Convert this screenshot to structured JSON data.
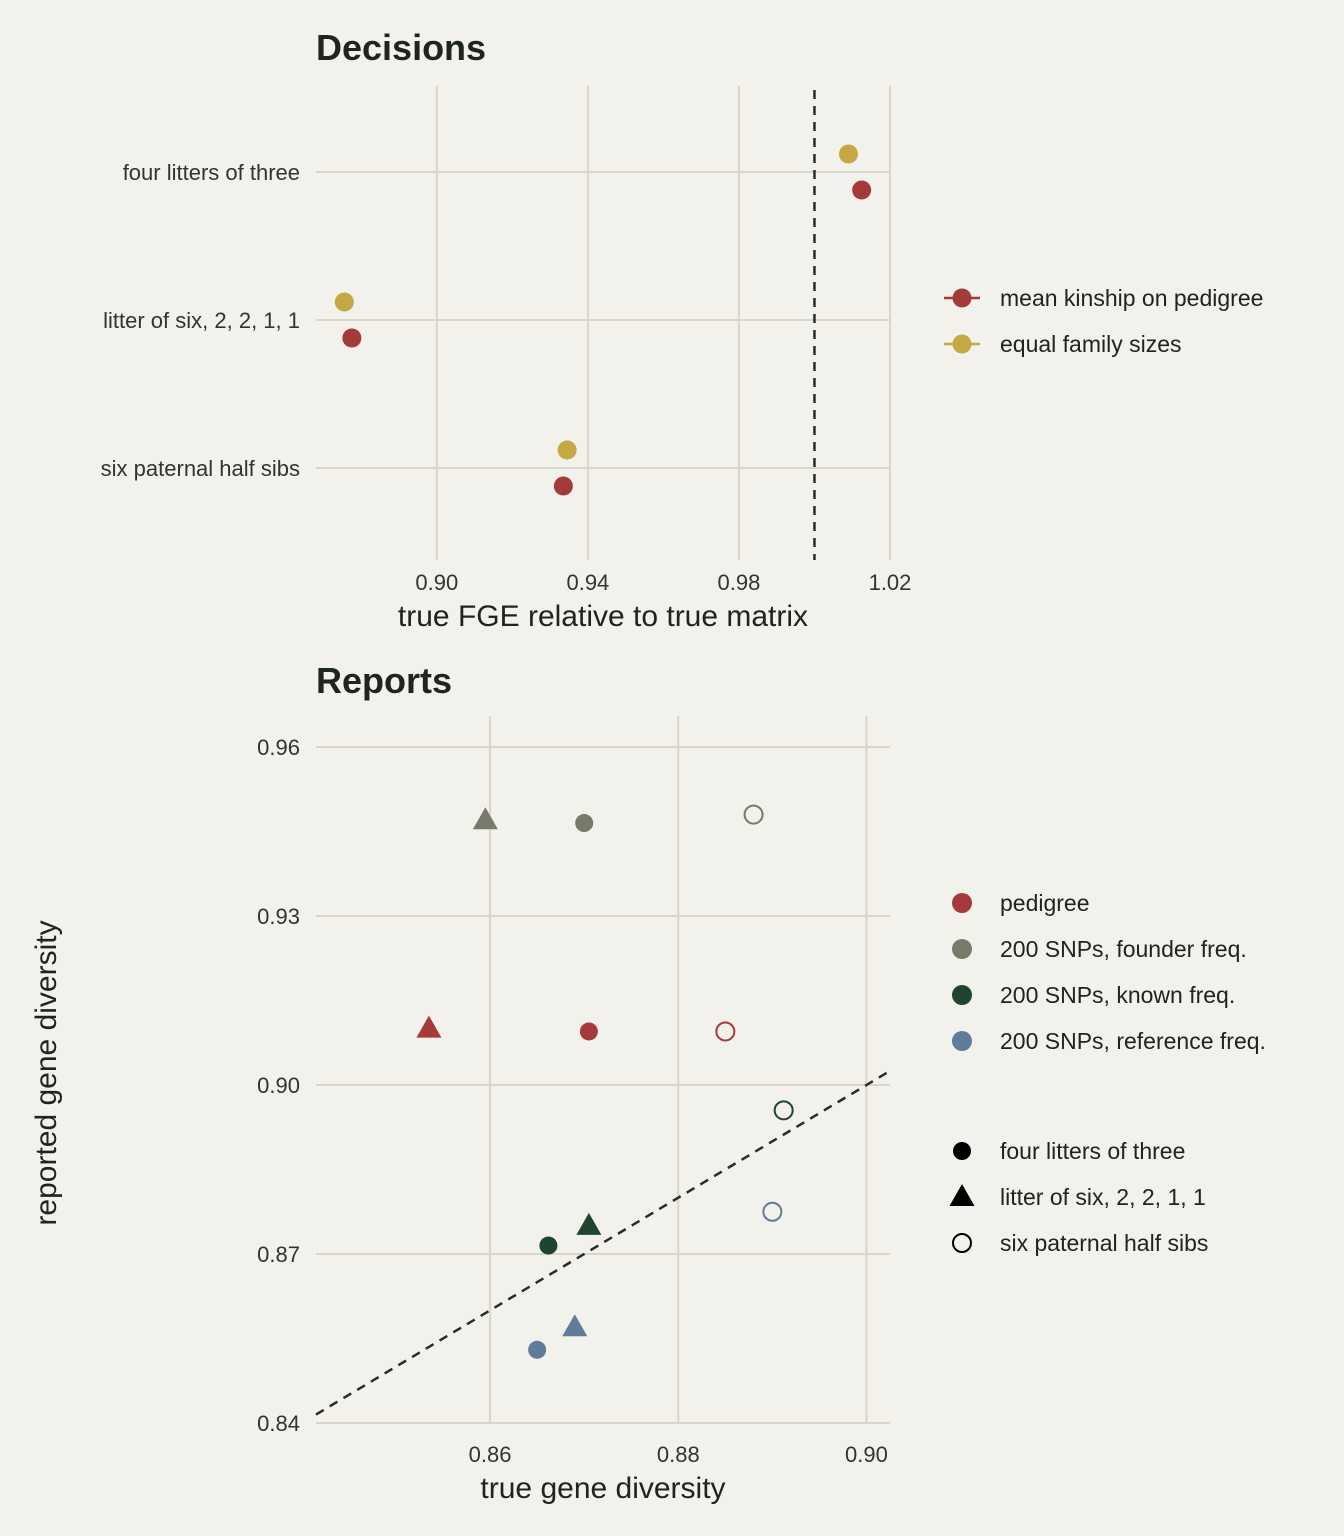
{
  "chart_data": [
    {
      "type": "scatter",
      "title": "Decisions",
      "xlabel": "true FGE relative to true matrix",
      "ylabel": "",
      "xlim": [
        0.868,
        1.02
      ],
      "xticks": [
        "0.90",
        "0.94",
        "0.98",
        "1.02"
      ],
      "xtick_values": [
        0.9,
        0.94,
        0.98,
        1.02
      ],
      "categories": [
        "four litters of three",
        "litter of six, 2, 2, 1, 1",
        "six paternal half sibs"
      ],
      "reference_line": {
        "x": 1.0,
        "style": "dashed"
      },
      "series": [
        {
          "name": "mean kinship on pedigree",
          "color": "#a53a3a",
          "values": [
            1.0125,
            0.8775,
            0.9335
          ]
        },
        {
          "name": "equal family sizes",
          "color": "#c4a843",
          "values": [
            1.009,
            0.8755,
            0.9345
          ]
        }
      ],
      "legend": "right"
    },
    {
      "type": "scatter",
      "title": "Reports",
      "xlabel": "true gene diversity",
      "ylabel": "reported gene diversity",
      "xlim": [
        0.8415,
        0.9025
      ],
      "ylim": [
        0.84,
        0.9655
      ],
      "xticks": [
        "0.86",
        "0.88",
        "0.90"
      ],
      "xtick_values": [
        0.86,
        0.88,
        0.9
      ],
      "yticks": [
        "0.84",
        "0.87",
        "0.90",
        "0.93",
        "0.96"
      ],
      "ytick_values": [
        0.84,
        0.87,
        0.9,
        0.93,
        0.96
      ],
      "reference_line": {
        "type": "identity",
        "style": "dashed"
      },
      "color_legend": [
        {
          "name": "pedigree",
          "color": "#a53a3a"
        },
        {
          "name": "200 SNPs, founder freq.",
          "color": "#7a7a6a"
        },
        {
          "name": "200 SNPs, known freq.",
          "color": "#1f4430"
        },
        {
          "name": "200 SNPs, reference freq.",
          "color": "#5f7d99"
        }
      ],
      "shape_legend": [
        {
          "name": "four litters of three",
          "shape": "circle"
        },
        {
          "name": "litter of six, 2, 2, 1, 1",
          "shape": "triangle"
        },
        {
          "name": "six paternal half sibs",
          "shape": "open-circle"
        }
      ],
      "points": [
        {
          "method": "pedigree",
          "design": "four litters of three",
          "x": 0.8705,
          "y": 0.9095
        },
        {
          "method": "pedigree",
          "design": "litter of six, 2, 2, 1, 1",
          "x": 0.8535,
          "y": 0.91
        },
        {
          "method": "pedigree",
          "design": "six paternal half sibs",
          "x": 0.885,
          "y": 0.9095
        },
        {
          "method": "200 SNPs, founder freq.",
          "design": "four litters of three",
          "x": 0.87,
          "y": 0.9465
        },
        {
          "method": "200 SNPs, founder freq.",
          "design": "litter of six, 2, 2, 1, 1",
          "x": 0.8595,
          "y": 0.947
        },
        {
          "method": "200 SNPs, founder freq.",
          "design": "six paternal half sibs",
          "x": 0.888,
          "y": 0.948
        },
        {
          "method": "200 SNPs, known freq.",
          "design": "four litters of three",
          "x": 0.8662,
          "y": 0.8715
        },
        {
          "method": "200 SNPs, known freq.",
          "design": "litter of six, 2, 2, 1, 1",
          "x": 0.8705,
          "y": 0.875
        },
        {
          "method": "200 SNPs, known freq.",
          "design": "six paternal half sibs",
          "x": 0.8912,
          "y": 0.8955
        },
        {
          "method": "200 SNPs, reference freq.",
          "design": "four litters of three",
          "x": 0.865,
          "y": 0.853
        },
        {
          "method": "200 SNPs, reference freq.",
          "design": "litter of six, 2, 2, 1, 1",
          "x": 0.869,
          "y": 0.857
        },
        {
          "method": "200 SNPs, reference freq.",
          "design": "six paternal half sibs",
          "x": 0.89,
          "y": 0.8775
        }
      ],
      "legend": "right"
    }
  ]
}
